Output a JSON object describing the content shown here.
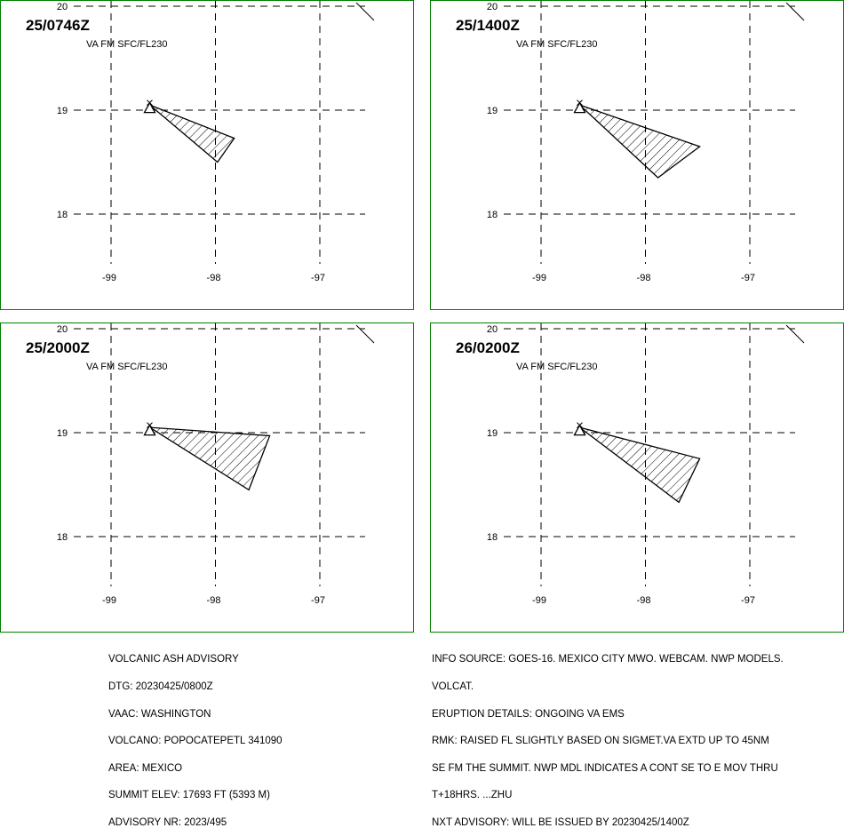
{
  "panels": [
    {
      "time_label": "25/0746Z",
      "level_label": "VA FM SFC/FL230",
      "polygon": [
        [
          -98.63,
          19.05
        ],
        [
          -97.82,
          18.73
        ],
        [
          -97.98,
          18.5
        ]
      ]
    },
    {
      "time_label": "25/1400Z",
      "level_label": "VA FM SFC/FL230",
      "polygon": [
        [
          -98.63,
          19.05
        ],
        [
          -97.48,
          18.65
        ],
        [
          -97.88,
          18.35
        ]
      ]
    },
    {
      "time_label": "25/2000Z",
      "level_label": "VA FM SFC/FL230",
      "polygon": [
        [
          -98.63,
          19.05
        ],
        [
          -97.48,
          18.97
        ],
        [
          -97.68,
          18.45
        ]
      ]
    },
    {
      "time_label": "26/0200Z",
      "level_label": "VA FM SFC/FL230",
      "polygon": [
        [
          -98.63,
          19.05
        ],
        [
          -97.48,
          18.75
        ],
        [
          -97.68,
          18.33
        ]
      ]
    }
  ],
  "map": {
    "lon_ticks": [
      "-99",
      "-98",
      "-97"
    ],
    "lat_ticks": [
      "20",
      "19",
      "18"
    ],
    "lon_values": [
      -99,
      -98,
      -97
    ],
    "lat_values": [
      20,
      19,
      18
    ],
    "volcano_lon": -98.63,
    "volcano_lat": 19.02,
    "border_color": "#008000",
    "volcano_icon": "triangle-volcano-icon"
  },
  "advisory_left": {
    "lines": [
      "VOLCANIC ASH ADVISORY",
      "DTG: 20230425/0800Z",
      "VAAC: WASHINGTON",
      "VOLCANO: POPOCATEPETL 341090",
      "AREA: MEXICO",
      "SUMMIT ELEV: 17693 FT (5393 M)",
      "ADVISORY NR: 2023/495"
    ]
  },
  "advisory_right": {
    "lines": [
      "INFO SOURCE: GOES-16. MEXICO CITY MWO. WEBCAM. NWP MODELS.",
      "VOLCAT.",
      "ERUPTION DETAILS: ONGOING VA EMS",
      "RMK: RAISED FL SLIGHTLY BASED ON SIGMET.VA EXTD UP TO 45NM",
      "SE FM THE SUMMIT. NWP MDL INDICATES A CONT SE TO E MOV THRU",
      "T+18HRS. ...ZHU",
      "NXT ADVISORY: WILL BE ISSUED BY 20230425/1400Z"
    ]
  }
}
